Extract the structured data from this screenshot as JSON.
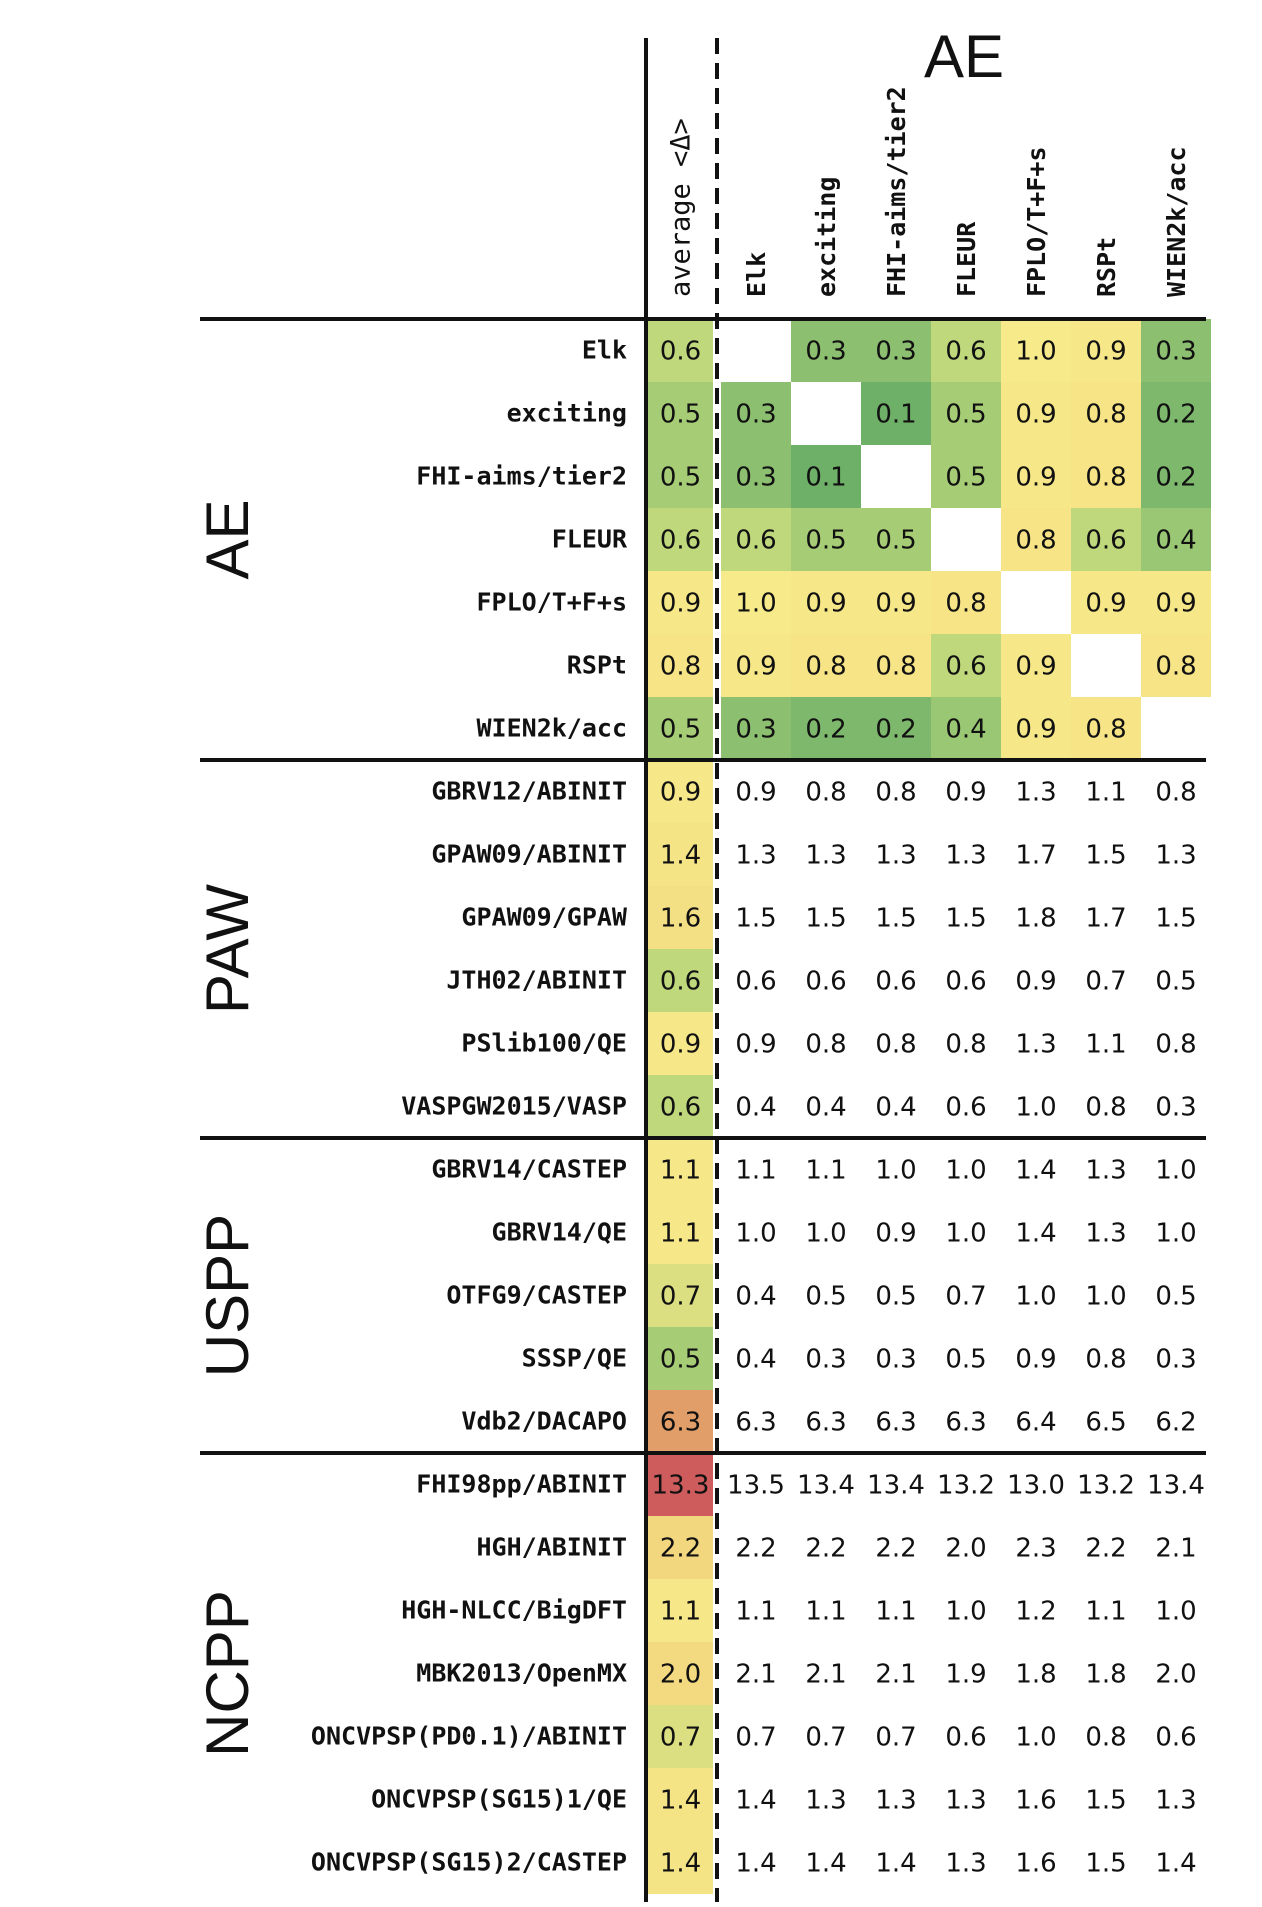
{
  "chart_data": {
    "type": "heatmap",
    "top_label": "AE",
    "average_column_label": "average <Δ>",
    "columns": [
      "Elk",
      "exciting",
      "FHI-aims/tier2",
      "FLEUR",
      "FPLO/T+F+s",
      "RSPt",
      "WIEN2k/acc"
    ],
    "groups": [
      {
        "name": "AE",
        "rows": [
          {
            "label": "Elk",
            "avg": 0.6,
            "values": [
              null,
              0.3,
              0.3,
              0.6,
              1.0,
              0.9,
              0.3
            ]
          },
          {
            "label": "exciting",
            "avg": 0.5,
            "values": [
              0.3,
              null,
              0.1,
              0.5,
              0.9,
              0.8,
              0.2
            ]
          },
          {
            "label": "FHI-aims/tier2",
            "avg": 0.5,
            "values": [
              0.3,
              0.1,
              null,
              0.5,
              0.9,
              0.8,
              0.2
            ]
          },
          {
            "label": "FLEUR",
            "avg": 0.6,
            "values": [
              0.6,
              0.5,
              0.5,
              null,
              0.8,
              0.6,
              0.4
            ]
          },
          {
            "label": "FPLO/T+F+s",
            "avg": 0.9,
            "values": [
              1.0,
              0.9,
              0.9,
              0.8,
              null,
              0.9,
              0.9
            ]
          },
          {
            "label": "RSPt",
            "avg": 0.8,
            "values": [
              0.9,
              0.8,
              0.8,
              0.6,
              0.9,
              null,
              0.8
            ]
          },
          {
            "label": "WIEN2k/acc",
            "avg": 0.5,
            "values": [
              0.3,
              0.2,
              0.2,
              0.4,
              0.9,
              0.8,
              null
            ]
          }
        ]
      },
      {
        "name": "PAW",
        "rows": [
          {
            "label": "GBRV12/ABINIT",
            "avg": 0.9,
            "values": [
              0.9,
              0.8,
              0.8,
              0.9,
              1.3,
              1.1,
              0.8
            ]
          },
          {
            "label": "GPAW09/ABINIT",
            "avg": 1.4,
            "values": [
              1.3,
              1.3,
              1.3,
              1.3,
              1.7,
              1.5,
              1.3
            ]
          },
          {
            "label": "GPAW09/GPAW",
            "avg": 1.6,
            "values": [
              1.5,
              1.5,
              1.5,
              1.5,
              1.8,
              1.7,
              1.5
            ]
          },
          {
            "label": "JTH02/ABINIT",
            "avg": 0.6,
            "values": [
              0.6,
              0.6,
              0.6,
              0.6,
              0.9,
              0.7,
              0.5
            ]
          },
          {
            "label": "PSlib100/QE",
            "avg": 0.9,
            "values": [
              0.9,
              0.8,
              0.8,
              0.8,
              1.3,
              1.1,
              0.8
            ]
          },
          {
            "label": "VASPGW2015/VASP",
            "avg": 0.6,
            "values": [
              0.4,
              0.4,
              0.4,
              0.6,
              1.0,
              0.8,
              0.3
            ]
          }
        ]
      },
      {
        "name": "USPP",
        "rows": [
          {
            "label": "GBRV14/CASTEP",
            "avg": 1.1,
            "values": [
              1.1,
              1.1,
              1.0,
              1.0,
              1.4,
              1.3,
              1.0
            ]
          },
          {
            "label": "GBRV14/QE",
            "avg": 1.1,
            "values": [
              1.0,
              1.0,
              0.9,
              1.0,
              1.4,
              1.3,
              1.0
            ]
          },
          {
            "label": "OTFG9/CASTEP",
            "avg": 0.7,
            "values": [
              0.4,
              0.5,
              0.5,
              0.7,
              1.0,
              1.0,
              0.5
            ]
          },
          {
            "label": "SSSP/QE",
            "avg": 0.5,
            "values": [
              0.4,
              0.3,
              0.3,
              0.5,
              0.9,
              0.8,
              0.3
            ]
          },
          {
            "label": "Vdb2/DACAPO",
            "avg": 6.3,
            "values": [
              6.3,
              6.3,
              6.3,
              6.3,
              6.4,
              6.5,
              6.2
            ]
          }
        ]
      },
      {
        "name": "NCPP",
        "rows": [
          {
            "label": "FHI98pp/ABINIT",
            "avg": 13.3,
            "values": [
              13.5,
              13.4,
              13.4,
              13.2,
              13.0,
              13.2,
              13.4
            ]
          },
          {
            "label": "HGH/ABINIT",
            "avg": 2.2,
            "values": [
              2.2,
              2.2,
              2.2,
              2.0,
              2.3,
              2.2,
              2.1
            ]
          },
          {
            "label": "HGH-NLCC/BigDFT",
            "avg": 1.1,
            "values": [
              1.1,
              1.1,
              1.1,
              1.0,
              1.2,
              1.1,
              1.0
            ]
          },
          {
            "label": "MBK2013/OpenMX",
            "avg": 2.0,
            "values": [
              2.1,
              2.1,
              2.1,
              1.9,
              1.8,
              1.8,
              2.0
            ]
          },
          {
            "label": "ONCVPSP(PD0.1)/ABINIT",
            "avg": 0.7,
            "values": [
              0.7,
              0.7,
              0.7,
              0.6,
              1.0,
              0.8,
              0.6
            ]
          },
          {
            "label": "ONCVPSP(SG15)1/QE",
            "avg": 1.4,
            "values": [
              1.4,
              1.3,
              1.3,
              1.3,
              1.6,
              1.5,
              1.3
            ]
          },
          {
            "label": "ONCVPSP(SG15)2/CASTEP",
            "avg": 1.4,
            "values": [
              1.4,
              1.4,
              1.4,
              1.3,
              1.6,
              1.5,
              1.4
            ]
          }
        ]
      }
    ]
  }
}
